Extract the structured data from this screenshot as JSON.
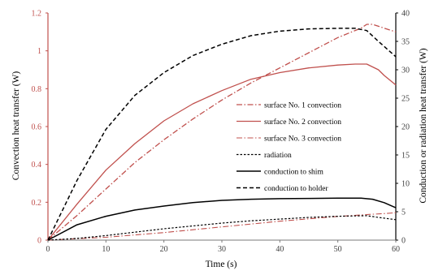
{
  "chart_data": {
    "type": "line",
    "xlabel": "Time (s)",
    "ylabel_left": "Convection heat transfer (W)",
    "ylabel_right": "Conduction or radiation heat transfer (W)",
    "xlim": [
      0,
      60
    ],
    "ylim_left": [
      0,
      1.2
    ],
    "ylim_right": [
      0,
      40
    ],
    "xticks": [
      "0",
      "10",
      "20",
      "30",
      "40",
      "50",
      "60"
    ],
    "yticks_left": [
      "0",
      "0.2",
      "0.4",
      "0.6",
      "0.8",
      "1",
      "1.2"
    ],
    "yticks_right": [
      "0",
      "5",
      "10",
      "15",
      "20",
      "25",
      "30",
      "35",
      "40"
    ],
    "grid": false,
    "legend_position": "center-right",
    "series": [
      {
        "name": "surface No. 1 convection",
        "axis": "left",
        "color": "#c0504d",
        "dash": "dash-dot",
        "width": 1.3,
        "x": [
          0,
          5,
          10,
          15,
          20,
          25,
          30,
          35,
          40,
          45,
          50,
          54,
          55,
          56,
          58,
          60
        ],
        "y": [
          0,
          0.13,
          0.27,
          0.41,
          0.53,
          0.64,
          0.74,
          0.83,
          0.91,
          0.99,
          1.07,
          1.12,
          1.14,
          1.14,
          1.12,
          1.1
        ]
      },
      {
        "name": "surface No. 2 convection",
        "axis": "left",
        "color": "#c0504d",
        "dash": "solid",
        "width": 1.3,
        "x": [
          0,
          5,
          10,
          15,
          20,
          25,
          30,
          35,
          40,
          45,
          50,
          53,
          55,
          57,
          58,
          60
        ],
        "y": [
          0,
          0.19,
          0.37,
          0.51,
          0.63,
          0.72,
          0.79,
          0.85,
          0.885,
          0.91,
          0.925,
          0.93,
          0.93,
          0.9,
          0.87,
          0.82
        ]
      },
      {
        "name": "surface No. 3 convection",
        "axis": "left",
        "color": "#c0504d",
        "dash": "dash-dot",
        "width": 1.1,
        "x": [
          0,
          10,
          20,
          30,
          40,
          50,
          55,
          58,
          60
        ],
        "y": [
          0,
          0.015,
          0.04,
          0.07,
          0.1,
          0.125,
          0.135,
          0.14,
          0.145
        ]
      },
      {
        "name": "radiation",
        "axis": "right",
        "color": "#000000",
        "dash": "dotted",
        "width": 1.2,
        "x": [
          0,
          5,
          10,
          15,
          20,
          25,
          30,
          35,
          40,
          45,
          50,
          55,
          57,
          60
        ],
        "y": [
          0,
          0.3,
          0.8,
          1.4,
          2.0,
          2.5,
          3.0,
          3.4,
          3.7,
          4.0,
          4.2,
          4.3,
          4.0,
          3.6
        ]
      },
      {
        "name": "conduction to shim",
        "axis": "right",
        "color": "#000000",
        "dash": "solid",
        "width": 1.5,
        "x": [
          0,
          5,
          10,
          15,
          20,
          25,
          30,
          35,
          40,
          45,
          50,
          54,
          56,
          58,
          60
        ],
        "y": [
          0,
          2.7,
          4.2,
          5.3,
          6.0,
          6.6,
          7.0,
          7.2,
          7.3,
          7.35,
          7.4,
          7.4,
          7.2,
          6.6,
          5.7
        ]
      },
      {
        "name": "conduction to holder",
        "axis": "right",
        "color": "#000000",
        "dash": "dashed",
        "width": 1.5,
        "x": [
          0,
          5,
          10,
          15,
          20,
          25,
          30,
          35,
          40,
          45,
          50,
          53,
          55,
          57,
          60
        ],
        "y": [
          0,
          10.5,
          19.5,
          25.5,
          29.5,
          32.5,
          34.5,
          36.0,
          36.8,
          37.2,
          37.3,
          37.3,
          36.9,
          35.0,
          32.3
        ]
      }
    ]
  }
}
